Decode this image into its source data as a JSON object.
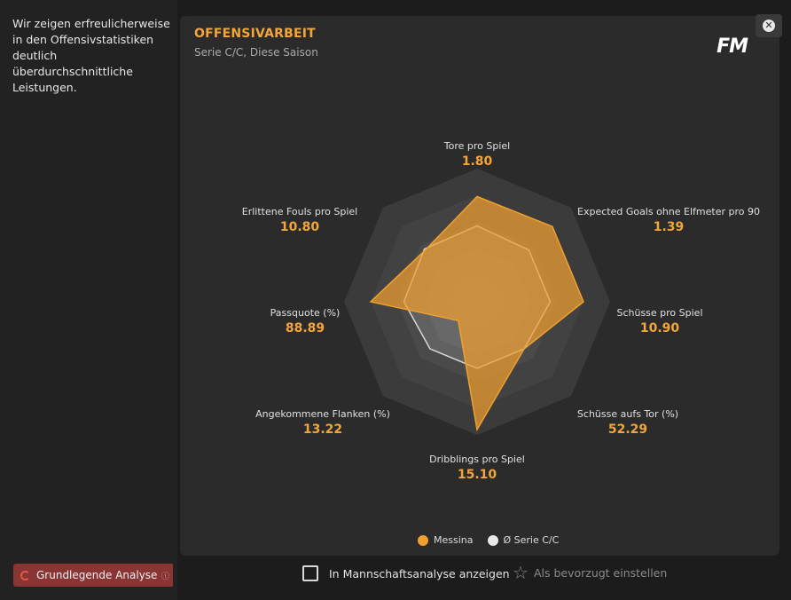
{
  "left": {
    "description": "Wir zeigen erfreulicherweise in den Offensivstatistiken deutlich überdurchschnittliche Leistungen.",
    "analysis_badge": "Grundlegende Analyse"
  },
  "card": {
    "title": "OFFENSIVARBEIT",
    "subtitle": "Serie C/C, Diese Saison",
    "logo": "FM"
  },
  "chart_data": {
    "type": "radar",
    "axes": [
      {
        "label": "Tore pro Spiel",
        "value": "1.80"
      },
      {
        "label": "Expected Goals ohne Elfmeter pro 90",
        "value": "1.39"
      },
      {
        "label": "Schüsse pro Spiel",
        "value": "10.90"
      },
      {
        "label": "Schüsse aufs Tor (%)",
        "value": "52.29"
      },
      {
        "label": "Dribblings pro Spiel",
        "value": "15.10"
      },
      {
        "label": "Angekommene Flanken (%)",
        "value": "13.22"
      },
      {
        "label": "Passquote (%)",
        "value": "88.89"
      },
      {
        "label": "Erlittene Fouls pro Spiel",
        "value": "10.80"
      }
    ],
    "series": [
      {
        "name": "Messina",
        "color": "#f0a030",
        "values": [
          0.79,
          0.8,
          0.8,
          0.5,
          0.96,
          0.2,
          0.8,
          0.55
        ]
      },
      {
        "name": "Ø Serie C/C",
        "color": "#e8e8e8",
        "values": [
          0.57,
          0.55,
          0.55,
          0.5,
          0.5,
          0.5,
          0.55,
          0.56
        ]
      }
    ],
    "rings": 5
  },
  "legend": {
    "series1": "Messina",
    "series2": "Ø Serie C/C"
  },
  "footer": {
    "team_analysis_label": "In Mannschaftsanalyse anzeigen",
    "favorite_label": "Als bevorzugt einstellen"
  }
}
